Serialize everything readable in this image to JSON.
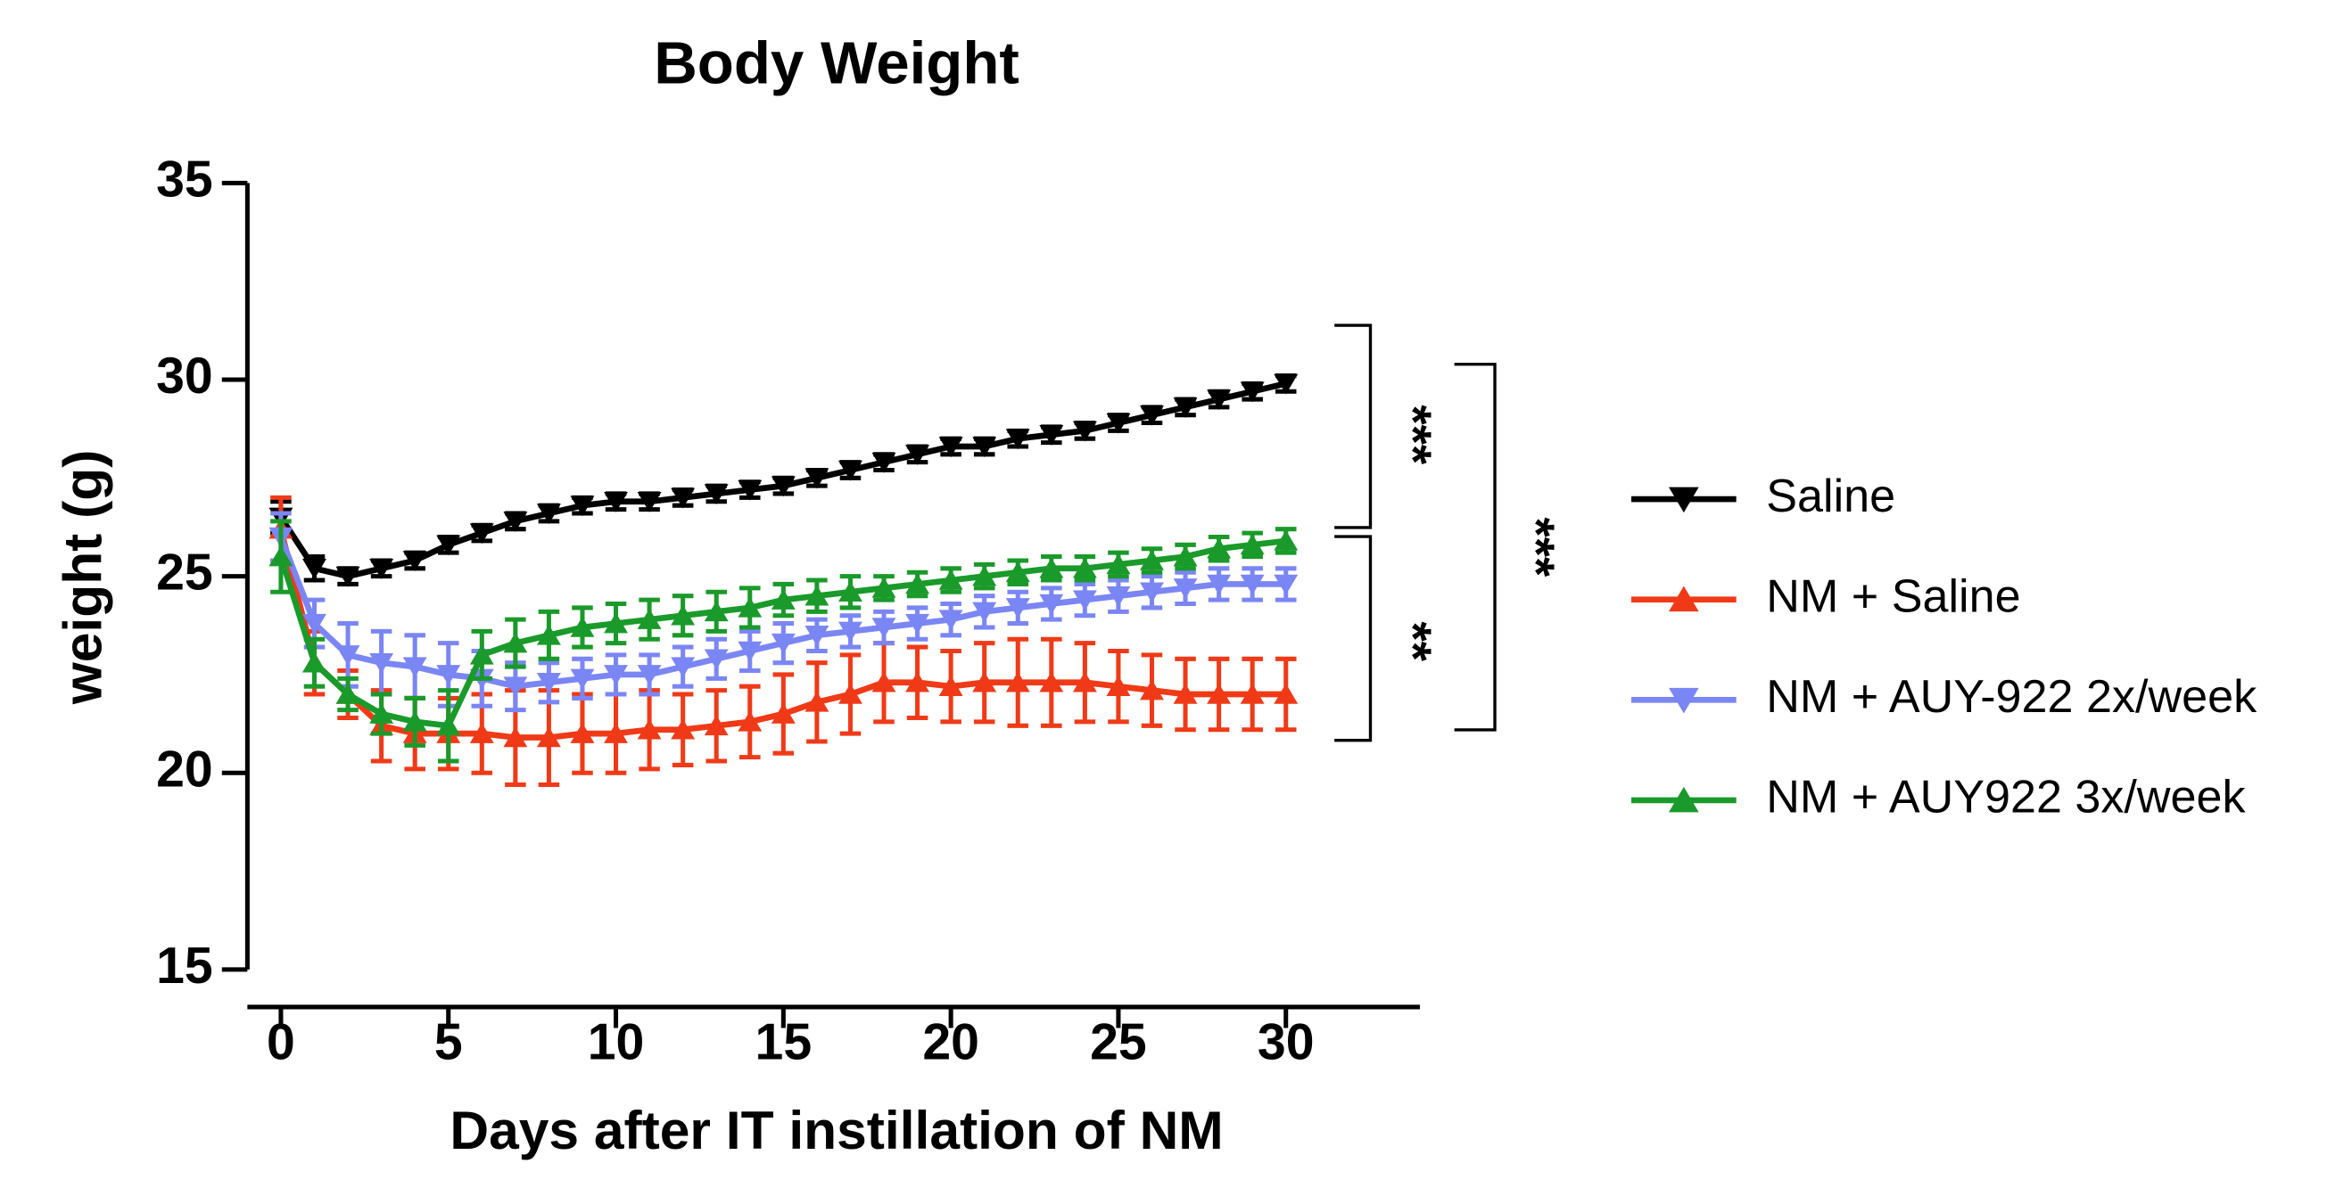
{
  "chart_data": {
    "type": "line",
    "title": "Body Weight",
    "x_label": "Days after IT instillation of NM",
    "y_label": "weight (g)",
    "x": [
      0,
      1,
      2,
      3,
      4,
      5,
      6,
      7,
      8,
      9,
      10,
      11,
      12,
      13,
      14,
      15,
      16,
      17,
      18,
      19,
      20,
      21,
      22,
      23,
      24,
      25,
      26,
      27,
      28,
      29,
      30
    ],
    "xlim": [
      -1,
      34
    ],
    "xticks": [
      0,
      5,
      10,
      15,
      20,
      25,
      30
    ],
    "ylim": [
      15,
      35
    ],
    "yticks": [
      15,
      20,
      25,
      30,
      35
    ],
    "grid": false,
    "legend": "right",
    "annotations": [
      "***",
      "***",
      "**"
    ],
    "series": [
      {
        "name": "Saline",
        "color": "#000000",
        "marker": "down",
        "values": [
          26.5,
          25.2,
          25.0,
          25.2,
          25.4,
          25.8,
          26.1,
          26.4,
          26.6,
          26.8,
          26.9,
          26.9,
          27.0,
          27.1,
          27.2,
          27.3,
          27.5,
          27.7,
          27.9,
          28.1,
          28.3,
          28.3,
          28.5,
          28.6,
          28.7,
          28.9,
          29.1,
          29.3,
          29.5,
          29.7,
          29.9
        ],
        "errors": [
          0.4,
          0.3,
          0.2,
          0.2,
          0.2,
          0.2,
          0.2,
          0.2,
          0.2,
          0.2,
          0.2,
          0.2,
          0.2,
          0.2,
          0.2,
          0.2,
          0.2,
          0.2,
          0.2,
          0.2,
          0.2,
          0.2,
          0.2,
          0.2,
          0.2,
          0.2,
          0.2,
          0.2,
          0.2,
          0.2,
          0.2
        ]
      },
      {
        "name": "NM + Saline",
        "color": "#f03a17",
        "marker": "up",
        "values": [
          26.2,
          22.8,
          22.0,
          21.2,
          21.0,
          21.0,
          21.0,
          20.9,
          20.9,
          21.0,
          21.0,
          21.1,
          21.1,
          21.2,
          21.3,
          21.5,
          21.8,
          22.0,
          22.3,
          22.3,
          22.2,
          22.3,
          22.3,
          22.3,
          22.3,
          22.2,
          22.1,
          22.0,
          22.0,
          22.0,
          22.0
        ],
        "errors": [
          0.8,
          0.8,
          0.6,
          0.9,
          0.9,
          0.9,
          1.0,
          1.2,
          1.2,
          1.0,
          1.0,
          1.0,
          0.9,
          0.9,
          0.9,
          1.0,
          1.0,
          1.0,
          1.0,
          0.9,
          0.9,
          1.0,
          1.1,
          1.1,
          1.0,
          0.9,
          0.9,
          0.9,
          0.9,
          0.9,
          0.9
        ]
      },
      {
        "name": "NM + AUY-922 2x/week",
        "color": "#7b86f5",
        "marker": "down",
        "values": [
          26.0,
          23.8,
          23.0,
          22.8,
          22.7,
          22.5,
          22.4,
          22.2,
          22.3,
          22.4,
          22.5,
          22.5,
          22.7,
          22.9,
          23.1,
          23.3,
          23.5,
          23.6,
          23.7,
          23.8,
          23.9,
          24.1,
          24.2,
          24.3,
          24.4,
          24.5,
          24.6,
          24.7,
          24.8,
          24.8,
          24.8
        ],
        "errors": [
          0.6,
          0.6,
          0.8,
          0.8,
          0.8,
          0.8,
          0.7,
          0.6,
          0.5,
          0.5,
          0.5,
          0.5,
          0.5,
          0.5,
          0.5,
          0.5,
          0.4,
          0.4,
          0.4,
          0.4,
          0.4,
          0.4,
          0.4,
          0.4,
          0.4,
          0.4,
          0.4,
          0.4,
          0.4,
          0.4,
          0.4
        ]
      },
      {
        "name": "NM + AUY922 3x/week",
        "color": "#1a9a2a",
        "marker": "up",
        "values": [
          25.5,
          22.8,
          22.0,
          21.5,
          21.3,
          21.2,
          23.0,
          23.3,
          23.5,
          23.7,
          23.8,
          23.9,
          24.0,
          24.1,
          24.2,
          24.4,
          24.5,
          24.6,
          24.7,
          24.8,
          24.9,
          25.0,
          25.1,
          25.2,
          25.2,
          25.3,
          25.4,
          25.5,
          25.7,
          25.8,
          25.9
        ],
        "errors": [
          0.9,
          0.6,
          0.4,
          0.5,
          0.6,
          0.9,
          0.6,
          0.6,
          0.6,
          0.5,
          0.5,
          0.5,
          0.5,
          0.5,
          0.5,
          0.4,
          0.4,
          0.4,
          0.3,
          0.3,
          0.3,
          0.3,
          0.3,
          0.3,
          0.3,
          0.3,
          0.3,
          0.3,
          0.3,
          0.3,
          0.3
        ]
      }
    ]
  }
}
